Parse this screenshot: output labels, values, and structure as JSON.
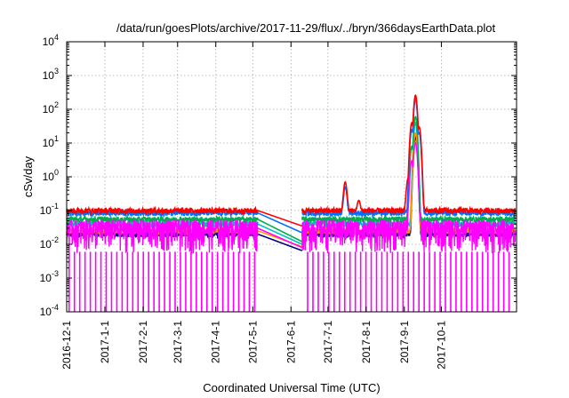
{
  "chart_data": {
    "type": "line",
    "title": "/data/run/goesPlots/archive/2017-11-29/flux/../bryn/366daysEarthData.plot",
    "xlabel": "Coordinated Universal Time (UTC)",
    "ylabel": "cSv/day",
    "xlim": [
      "2016-12-01",
      "2017-12-01"
    ],
    "ylim": [
      0.0001,
      10000
    ],
    "yscale": "log",
    "grid": true,
    "x_ticks": [
      "2016-12-1",
      "2017-1-1",
      "2017-2-1",
      "2017-3-1",
      "2017-4-1",
      "2017-5-1",
      "2017-6-1",
      "2017-7-1",
      "2017-8-1",
      "2017-9-1",
      "2017-10-1"
    ],
    "y_ticks": [
      {
        "base": "10",
        "exp": "-4",
        "value": 0.0001
      },
      {
        "base": "10",
        "exp": "-3",
        "value": 0.001
      },
      {
        "base": "10",
        "exp": "-2",
        "value": 0.01
      },
      {
        "base": "10",
        "exp": "-1",
        "value": 0.1
      },
      {
        "base": "10",
        "exp": "0",
        "value": 1
      },
      {
        "base": "10",
        "exp": "1",
        "value": 10
      },
      {
        "base": "10",
        "exp": "2",
        "value": 100
      },
      {
        "base": "10",
        "exp": "3",
        "value": 1000
      },
      {
        "base": "10",
        "exp": "4",
        "value": 10000
      }
    ],
    "data_gap": [
      "2017-05-05",
      "2017-06-10"
    ],
    "series": [
      {
        "color": "#ff0000",
        "baseline": 0.1,
        "gap_value": 0.035,
        "peaks": [
          {
            "x": "2017-07-15",
            "y": 0.7
          },
          {
            "x": "2017-07-26",
            "y": 0.2
          },
          {
            "x": "2017-09-04",
            "y": 0.9
          },
          {
            "x": "2017-09-07",
            "y": 40
          },
          {
            "x": "2017-09-10",
            "y": 260
          },
          {
            "x": "2017-09-13",
            "y": 30
          }
        ]
      },
      {
        "color": "#0070ff",
        "baseline": 0.085,
        "gap_value": 0.022,
        "peaks": [
          {
            "x": "2017-07-15",
            "y": 0.5
          },
          {
            "x": "2017-09-07",
            "y": 25
          },
          {
            "x": "2017-09-10",
            "y": 200
          },
          {
            "x": "2017-09-13",
            "y": 20
          }
        ]
      },
      {
        "color": "#00b050",
        "baseline": 0.055,
        "gap_value": 0.012,
        "peaks": [
          {
            "x": "2017-09-07",
            "y": 8
          },
          {
            "x": "2017-09-10",
            "y": 60
          }
        ]
      },
      {
        "color": "#00c0c0",
        "baseline": 0.04,
        "gap_value": 0.01,
        "peaks": [
          {
            "x": "2017-09-10",
            "y": 40
          }
        ]
      },
      {
        "color": "#ff9900",
        "baseline": 0.025,
        "gap_value": 0.0085,
        "peaks": [
          {
            "x": "2017-09-10",
            "y": 20
          }
        ]
      },
      {
        "color": "#000080",
        "baseline": 0.02,
        "gap_value": 0.0065,
        "peaks": [
          {
            "x": "2017-09-10",
            "y": 15
          }
        ]
      },
      {
        "color": "#ff00ff",
        "baseline": 0.03,
        "gap_value": 0.008,
        "peaks": [
          {
            "x": "2017-09-07",
            "y": 3
          },
          {
            "x": "2017-09-10",
            "y": 10
          }
        ]
      }
    ]
  }
}
